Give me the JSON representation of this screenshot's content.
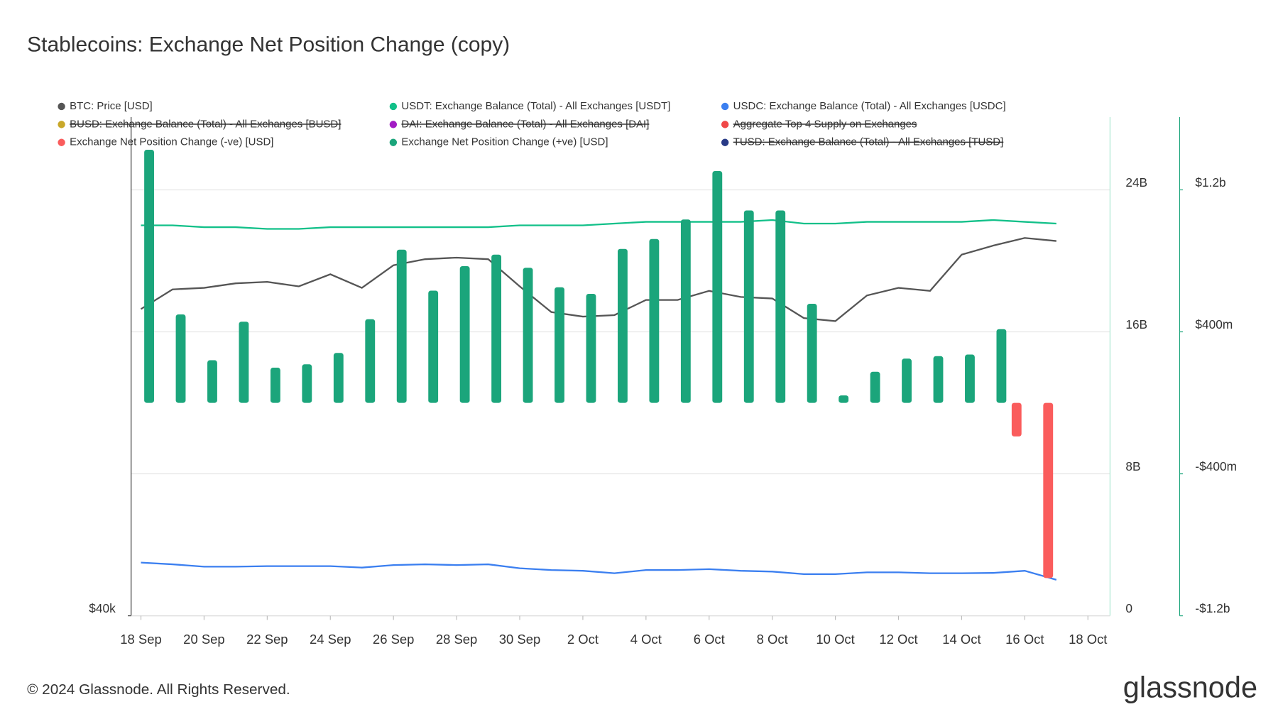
{
  "chart_data": {
    "type": "combo",
    "title": "Stablecoins: Exchange Net Position Change (copy)",
    "footer": "© 2024 Glassnode. All Rights Reserved.",
    "logo": "glassnode",
    "categories": [
      "18 Sep",
      null,
      "20 Sep",
      null,
      "22 Sep",
      null,
      "24 Sep",
      null,
      "26 Sep",
      null,
      "28 Sep",
      null,
      "30 Sep",
      null,
      "2 Oct",
      null,
      "4 Oct",
      null,
      "6 Oct",
      null,
      "8 Oct",
      null,
      "10 Oct",
      null,
      "12 Oct",
      null,
      "14 Oct",
      null,
      "16 Oct",
      null,
      "18 Oct"
    ],
    "ylim": [
      40000,
      73000
    ],
    "yticks": [
      {
        "value": 40000,
        "label": "$40k"
      }
    ],
    "y2lim": [
      0,
      28100000000
    ],
    "y2ticks": [
      0,
      {
        "value": 8000000000,
        "label": "8B"
      },
      {
        "value": 16000000000,
        "label": "16B"
      },
      {
        "value": 24000000000,
        "label": "24B"
      }
    ],
    "y3lim": [
      -1200000000,
      1610000000
    ],
    "y3ticks": [
      {
        "value": -1200000000,
        "label": "-$1.2b"
      },
      {
        "value": -400000000,
        "label": "-$400m"
      },
      {
        "value": 400000000,
        "label": "$400m"
      },
      {
        "value": 1200000000,
        "label": "$1.2b"
      }
    ],
    "grid": true,
    "series": [
      {
        "name": "BTC: Price [USD]",
        "color": "#555555",
        "kind": "line",
        "axis": "y",
        "values": [
          60300,
          61600,
          61700,
          62000,
          62100,
          61800,
          62600,
          61700,
          63200,
          63600,
          63700,
          63600,
          61800,
          60100,
          59800,
          59900,
          60900,
          60900,
          61500,
          61100,
          61000,
          59700,
          59500,
          61200,
          61700,
          61500,
          63900,
          64500,
          65000,
          64800,
          null
        ]
      },
      {
        "name": "USDT: Exchange Balance (Total) - All Exchanges [USDT]",
        "color": "#12c089",
        "kind": "line",
        "axis": "y2",
        "values": [
          22000000000,
          22000000000,
          21900000000,
          21900000000,
          21800000000,
          21800000000,
          21900000000,
          21900000000,
          21900000000,
          21900000000,
          21900000000,
          21900000000,
          22000000000,
          22000000000,
          22000000000,
          22100000000,
          22200000000,
          22200000000,
          22200000000,
          22200000000,
          22300000000,
          22100000000,
          22100000000,
          22200000000,
          22200000000,
          22200000000,
          22200000000,
          22300000000,
          22200000000,
          22100000000,
          null
        ]
      },
      {
        "name": "USDC: Exchange Balance (Total) - All Exchanges [USDC]",
        "color": "#3b7ff0",
        "kind": "line",
        "axis": "y2",
        "values": [
          3000000000,
          2900000000,
          2770000000,
          2770000000,
          2800000000,
          2800000000,
          2800000000,
          2720000000,
          2860000000,
          2900000000,
          2860000000,
          2900000000,
          2680000000,
          2580000000,
          2540000000,
          2400000000,
          2580000000,
          2580000000,
          2630000000,
          2540000000,
          2490000000,
          2350000000,
          2350000000,
          2450000000,
          2450000000,
          2400000000,
          2400000000,
          2420000000,
          2540000000,
          2030000000,
          null
        ]
      },
      {
        "name": "BUSD: Exchange Balance (Total) - All Exchanges [BUSD]",
        "color": "#c9a82a",
        "hidden": true
      },
      {
        "name": "DAI: Exchange Balance (Total) - All Exchanges [DAI]",
        "color": "#a21cc4",
        "hidden": true
      },
      {
        "name": "Aggregate Top 4 Supply on Exchanges",
        "color": "#f04848",
        "hidden": true
      },
      {
        "name": "Exchange Net Position Change (-ve) [USD]",
        "color": "#fa5c5c",
        "kind": "bar",
        "axis": "y3",
        "offset": -10,
        "values": [
          null,
          null,
          null,
          null,
          null,
          null,
          null,
          null,
          null,
          null,
          null,
          null,
          null,
          null,
          null,
          null,
          null,
          null,
          null,
          null,
          null,
          null,
          null,
          null,
          null,
          null,
          null,
          null,
          -189000000,
          -987000000,
          null
        ]
      },
      {
        "name": "Exchange Net Position Change (+ve) [USD]",
        "color": "#1ba57b",
        "kind": "bar",
        "axis": "y3",
        "offset": 10,
        "values": [
          1426000000,
          498000000,
          240000000,
          457000000,
          198000000,
          217000000,
          281000000,
          471000000,
          863000000,
          632000000,
          770000000,
          835000000,
          761000000,
          651000000,
          614000000,
          867000000,
          923000000,
          1033000000,
          1306000000,
          1084000000,
          1084000000,
          558000000,
          42000000,
          175000000,
          249000000,
          263000000,
          272000000,
          415000000,
          null,
          null,
          null
        ]
      },
      {
        "name": "TUSD: Exchange Balance (Total) - All Exchanges [TUSD]",
        "color": "#283a86",
        "hidden": true
      }
    ]
  }
}
